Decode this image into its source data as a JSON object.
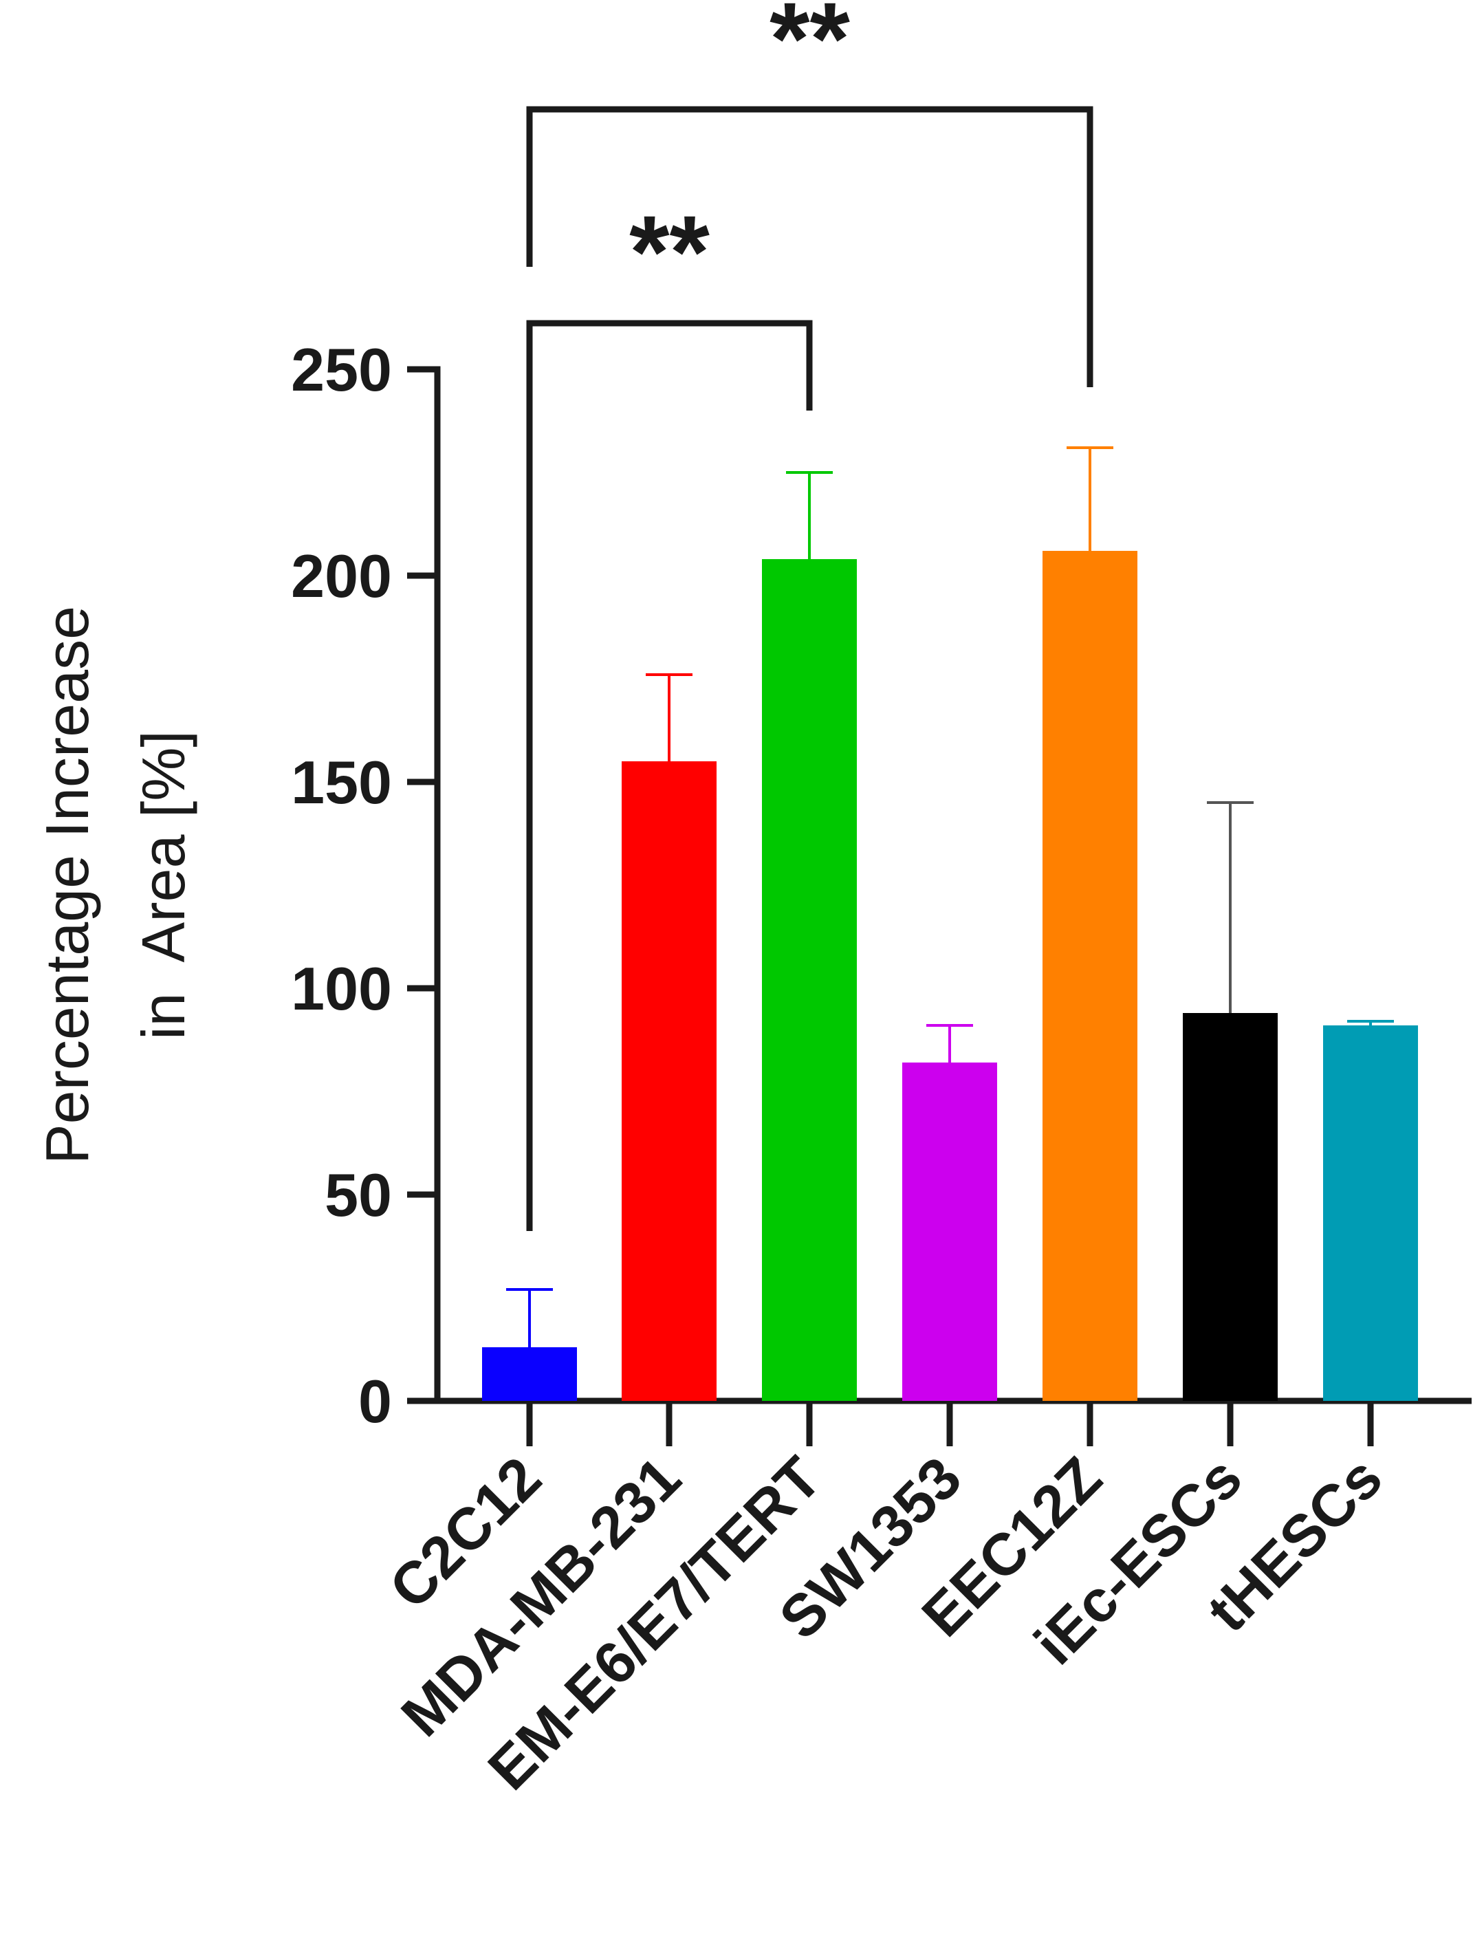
{
  "chart_data": {
    "type": "bar",
    "title": "",
    "xlabel": "",
    "ylabel_lines": [
      "Percentage Increase",
      "in  Area [%]"
    ],
    "ylim": [
      0,
      250
    ],
    "yticks": [
      0,
      50,
      100,
      150,
      200,
      250
    ],
    "ytick_labels": [
      "0",
      "50",
      "100",
      "150",
      "200",
      "250"
    ],
    "grid": false,
    "categories": [
      "C2C12",
      "MDA-MB-231",
      "EM-E6/E7/TERT",
      "SW1353",
      "EEC12Z",
      "iEc-ESCs",
      "tHESCs"
    ],
    "values": [
      13,
      155,
      204,
      82,
      206,
      94,
      91
    ],
    "error_upper": [
      14,
      21,
      21,
      9,
      25,
      51,
      1
    ],
    "colors": [
      "#0a00ff",
      "#ff0000",
      "#00c800",
      "#cc00ee",
      "#ff8000",
      "#000000",
      "#009cb4"
    ],
    "significance": [
      {
        "from": "C2C12",
        "to": "EM-E6/E7/TERT",
        "label": "**"
      },
      {
        "from": "C2C12",
        "to": "EEC12Z",
        "label": "**"
      }
    ]
  }
}
